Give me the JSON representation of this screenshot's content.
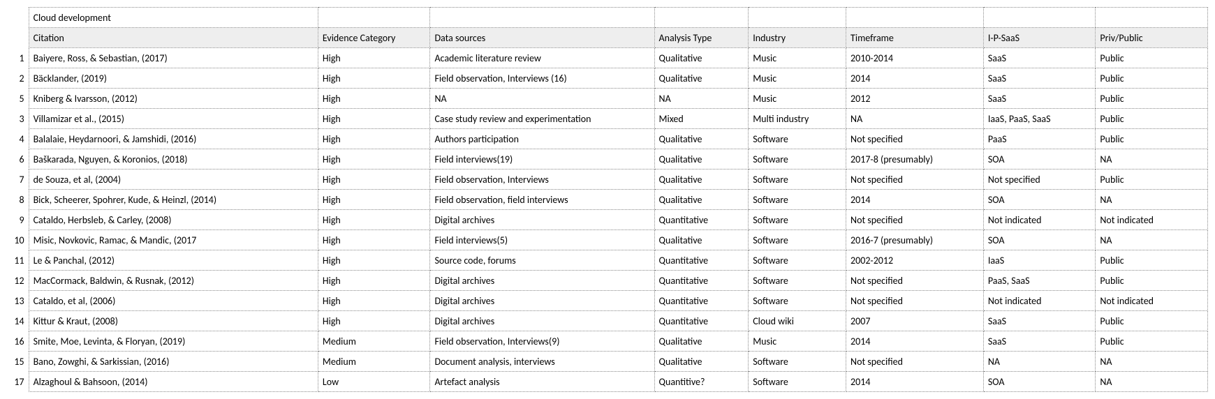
{
  "table": {
    "title": "Cloud development",
    "columns": [
      "Citation",
      "Evidence Category",
      "Data sources",
      "Analysis Type",
      "Industry",
      "Timeframe",
      "I-P-SaaS",
      "Priv/Public"
    ],
    "colors": {
      "header_bg": "#eeeeee",
      "border": "#888888",
      "text": "#000000",
      "background": "#ffffff"
    },
    "rows": [
      {
        "n": "1",
        "cells": [
          "Baiyere, Ross, & Sebastian, (2017)",
          "High",
          "Academic literature review",
          "Qualitative",
          "Music",
          "2010-2014",
          "SaaS",
          "Public"
        ]
      },
      {
        "n": "2",
        "cells": [
          "Bäcklander, (2019)",
          "High",
          "Field observation, Interviews (16)",
          "Qualitative",
          "Music",
          "2014",
          "SaaS",
          "Public"
        ]
      },
      {
        "n": "5",
        "cells": [
          "Kniberg & Ivarsson, (2012)",
          "High",
          "NA",
          "NA",
          "Music",
          "2012",
          "SaaS",
          "Public"
        ]
      },
      {
        "n": "3",
        "cells": [
          "Villamizar et al., (2015)",
          "High",
          "Case study review and experimentation",
          "Mixed",
          "Multi industry",
          "NA",
          "IaaS, PaaS, SaaS",
          "Public"
        ]
      },
      {
        "n": "4",
        "cells": [
          "Balalaie, Heydarnoori, & Jamshidi, (2016)",
          "High",
          "Authors participation",
          "Qualitative",
          "Software",
          "Not specified",
          "PaaS",
          "Public"
        ]
      },
      {
        "n": "6",
        "cells": [
          "Baškarada, Nguyen, & Koronios, (2018)",
          "High",
          "Field interviews(19)",
          "Qualitative",
          "Software",
          "2017-8 (presumably)",
          "SOA",
          "NA"
        ]
      },
      {
        "n": "7",
        "cells": [
          "de Souza, et al, (2004)",
          "High",
          "Field observation, Interviews",
          "Qualitative",
          "Software",
          "Not specified",
          "Not specified",
          "Public"
        ]
      },
      {
        "n": "8",
        "cells": [
          "Bick, Scheerer, Spohrer, Kude, & Heinzl, (2014)",
          "High",
          "Field observation, field interviews",
          "Qualitative",
          "Software",
          "2014",
          "SOA",
          "NA"
        ]
      },
      {
        "n": "9",
        "cells": [
          "Cataldo, Herbsleb, & Carley, (2008)",
          "High",
          "Digital archives",
          "Quantitative",
          "Software",
          "Not specified",
          "Not indicated",
          "Not indicated"
        ]
      },
      {
        "n": "10",
        "cells": [
          "Misic, Novkovic, Ramac, & Mandic, (2017",
          "High",
          "Field interviews(5)",
          "Qualitative",
          "Software",
          "2016-7 (presumably)",
          "SOA",
          "NA"
        ]
      },
      {
        "n": "11",
        "cells": [
          "Le & Panchal, (2012)",
          "High",
          "Source code, forums",
          "Quantitative",
          "Software",
          "2002-2012",
          "IaaS",
          "Public"
        ]
      },
      {
        "n": "12",
        "cells": [
          "MacCormack, Baldwin, & Rusnak, (2012)",
          "High",
          "Digital archives",
          "Quantitative",
          "Software",
          "Not specified",
          "PaaS, SaaS",
          "Public"
        ]
      },
      {
        "n": "13",
        "cells": [
          "Cataldo, et al, (2006)",
          "High",
          "Digital archives",
          "Quantitative",
          "Software",
          "Not specified",
          "Not indicated",
          "Not indicated"
        ]
      },
      {
        "n": "14",
        "cells": [
          "Kittur & Kraut, (2008)",
          "High",
          "Digital archives",
          "Quantitative",
          "Cloud wiki",
          "2007",
          "SaaS",
          "Public"
        ]
      },
      {
        "n": "16",
        "cells": [
          "Smite, Moe, Levinta, & Floryan, (2019)",
          "Medium",
          "Field observation, Interviews(9)",
          "Qualitative",
          "Music",
          "2014",
          "SaaS",
          "Public"
        ]
      },
      {
        "n": "15",
        "cells": [
          "Bano, Zowghi, & Sarkissian, (2016)",
          "Medium",
          "Document analysis, interviews",
          "Qualitative",
          "Software",
          "Not specified",
          "NA",
          "NA"
        ]
      },
      {
        "n": "17",
        "cells": [
          "Alzaghoul & Bahsoon, (2014)",
          "Low",
          "Artefact analysis",
          "Quantitive?",
          "Software",
          "2014",
          "SOA",
          "NA"
        ]
      }
    ]
  }
}
